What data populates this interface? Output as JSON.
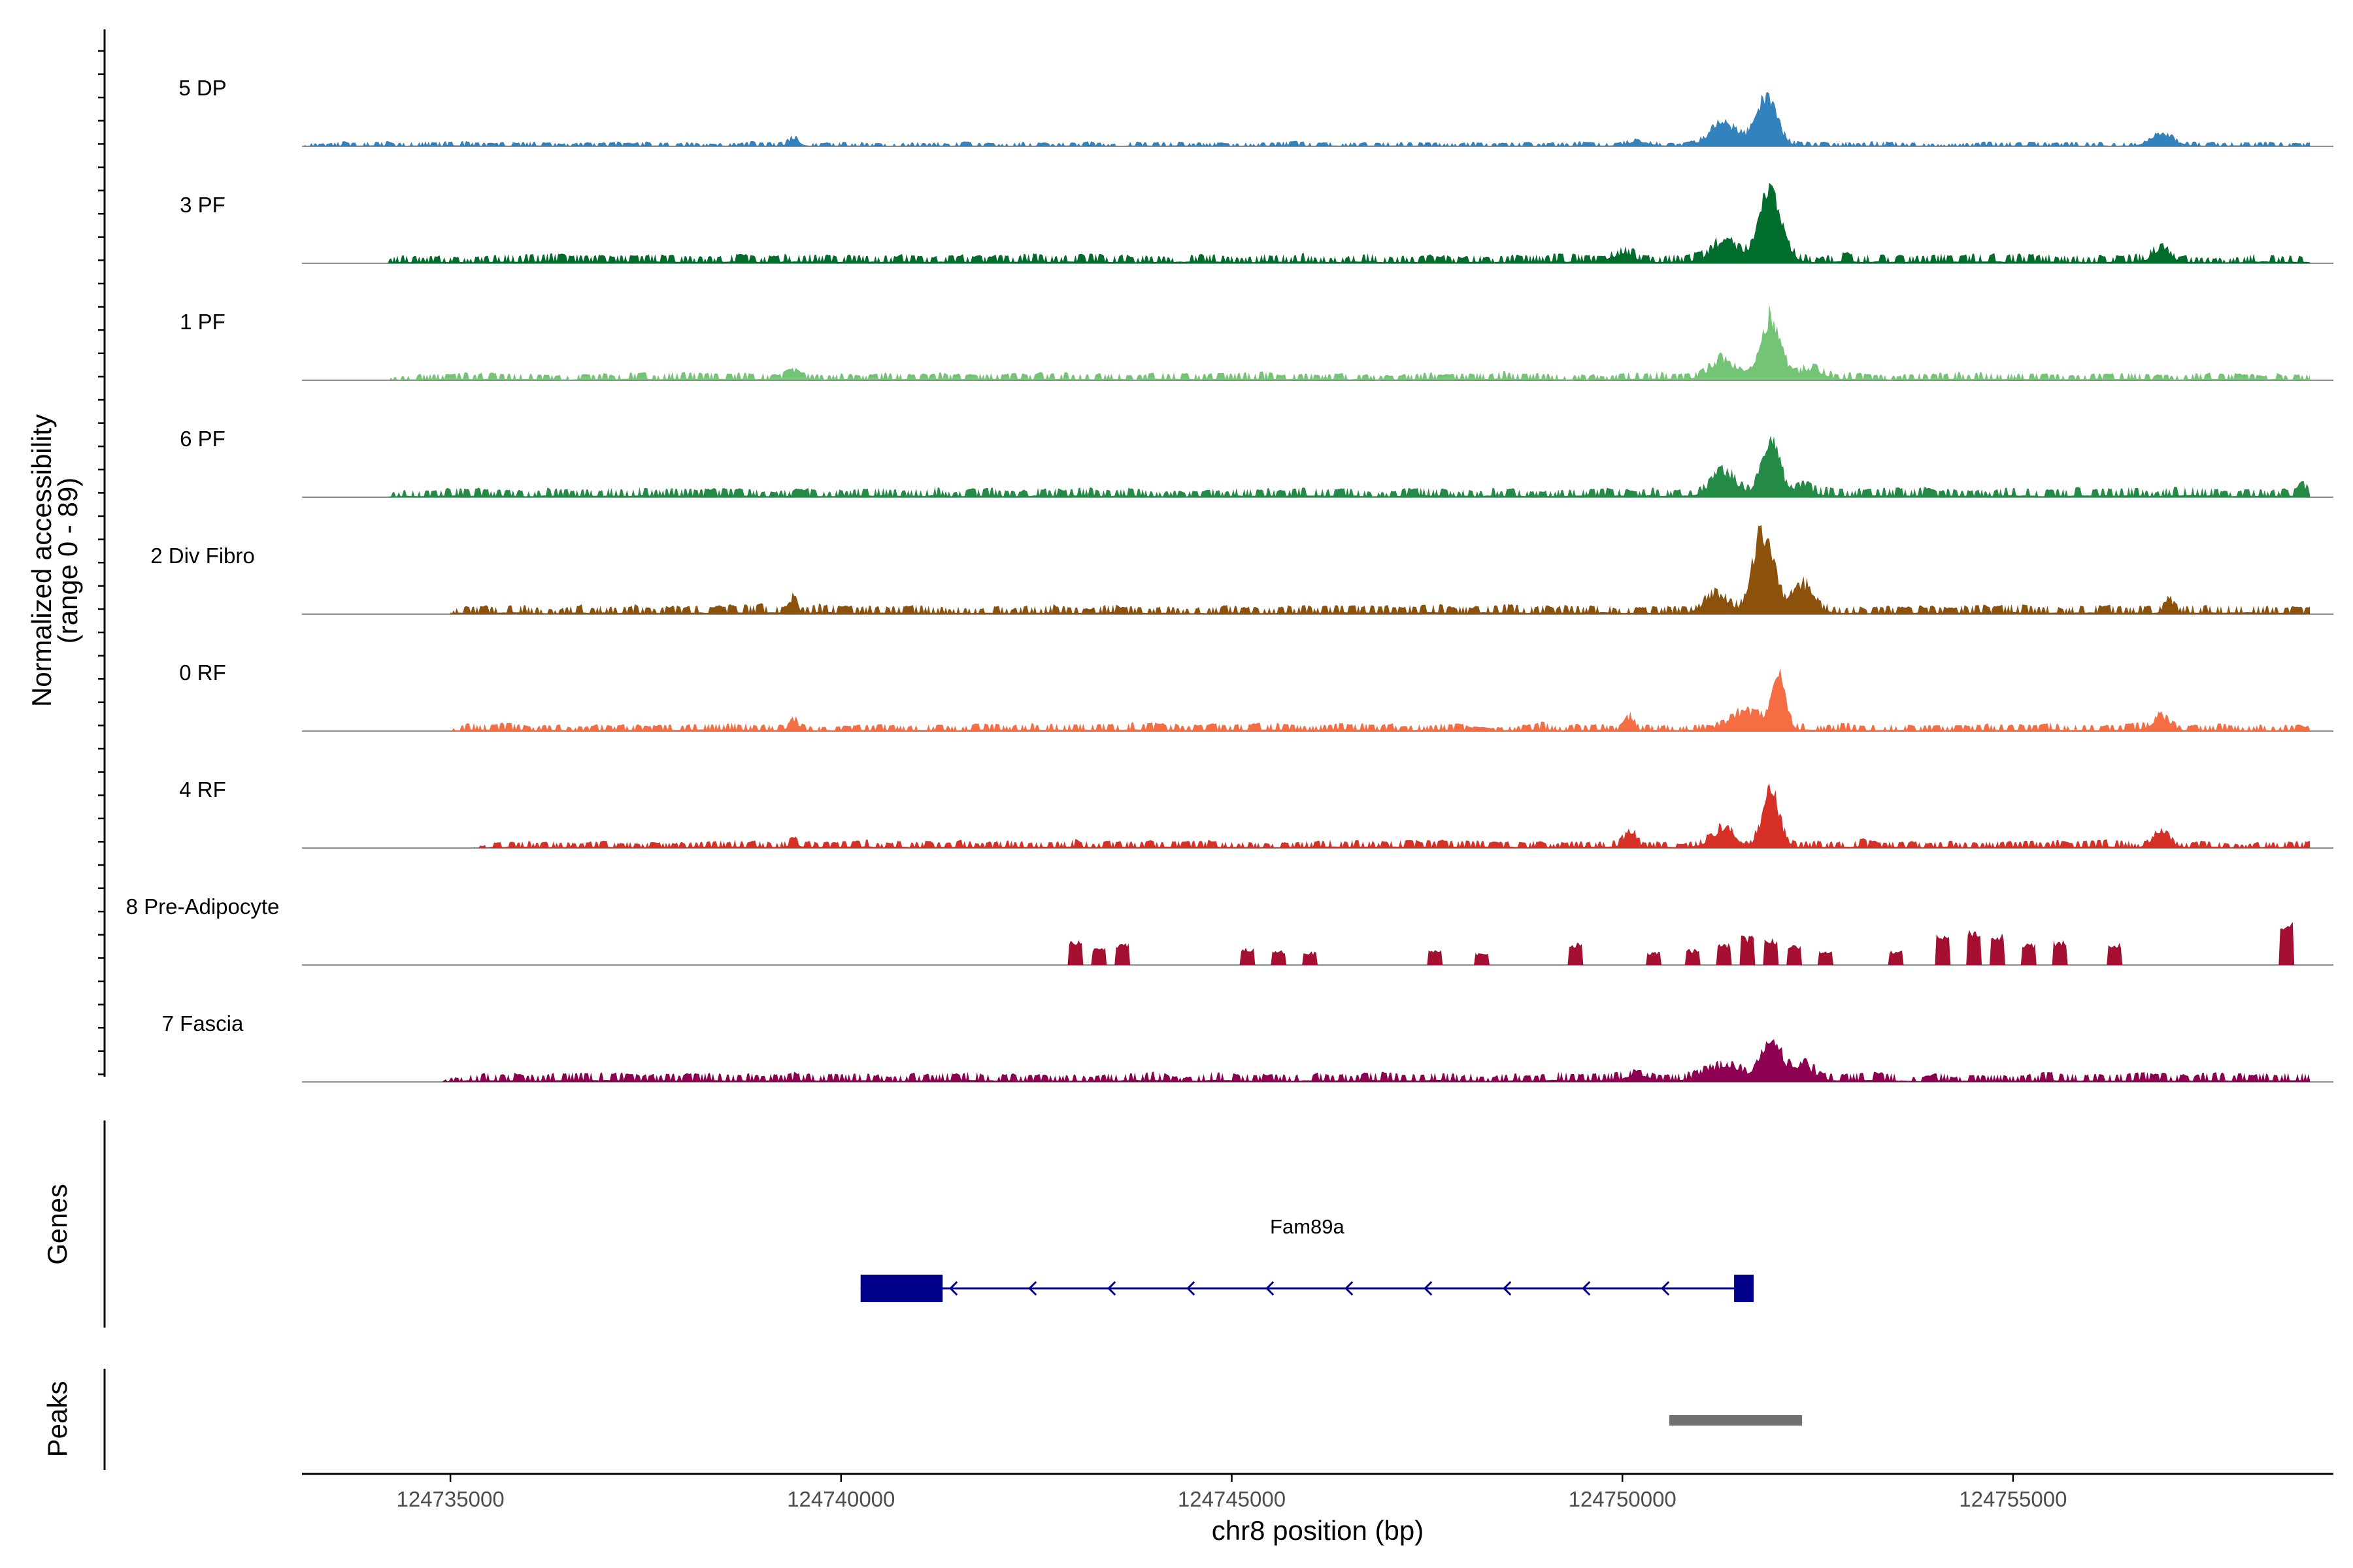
{
  "chart_data": {
    "type": "area",
    "title": "",
    "ylabel_line1": "Normalized accessibility",
    "ylabel_line2": "(range 0 - 89)",
    "xlabel": "chr8 position (bp)",
    "xlim": [
      124733100,
      124759100
    ],
    "ylim": [
      0,
      89
    ],
    "x_ticks": [
      "124735000",
      "124740000",
      "124745000",
      "124750000",
      "124755000"
    ],
    "x_tick_values": [
      124735000,
      124740000,
      124745000,
      124750000,
      124755000
    ],
    "tracks": [
      {
        "name": "5 DP",
        "color": "#3182BD",
        "data_start": 124733100,
        "peaks": [
          [
            124751300,
            18,
            250
          ],
          [
            124751850,
            40,
            180
          ],
          [
            124756900,
            9,
            200
          ],
          [
            124739400,
            6,
            80
          ],
          [
            124750200,
            3,
            200
          ],
          [
            124758900,
            8,
            40
          ]
        ],
        "noise": 1.5,
        "noise_start": 124734200
      },
      {
        "name": "3 PF",
        "color": "#006D2C",
        "data_start": 124734200,
        "peaks": [
          [
            124751300,
            16,
            230
          ],
          [
            124751900,
            55,
            200
          ],
          [
            124756900,
            11,
            150
          ],
          [
            124750000,
            6,
            200
          ],
          [
            124758900,
            10,
            40
          ]
        ],
        "noise": 3
      },
      {
        "name": "1 PF",
        "color": "#74C476",
        "data_start": 124734200,
        "peaks": [
          [
            124751300,
            14,
            230
          ],
          [
            124751900,
            52,
            170
          ],
          [
            124752400,
            8,
            200
          ],
          [
            124739400,
            5,
            100
          ],
          [
            124758900,
            10,
            40
          ]
        ],
        "noise": 2.5
      },
      {
        "name": "6 PF",
        "color": "#238B45",
        "data_start": 124734200,
        "peaks": [
          [
            124751300,
            18,
            220
          ],
          [
            124751900,
            44,
            160
          ],
          [
            124752300,
            8,
            150
          ],
          [
            124758700,
            8,
            60
          ],
          [
            124758900,
            10,
            40
          ]
        ],
        "noise": 3
      },
      {
        "name": "2 Div Fibro",
        "color": "#8C510A",
        "data_start": 124735000,
        "peaks": [
          [
            124751200,
            15,
            200
          ],
          [
            124751800,
            66,
            180
          ],
          [
            124752300,
            22,
            200
          ],
          [
            124739400,
            14,
            60
          ],
          [
            124757000,
            10,
            80
          ],
          [
            124758900,
            8,
            40
          ]
        ],
        "noise": 3
      },
      {
        "name": "0 RF",
        "color": "#F46D43",
        "data_start": 124735000,
        "peaks": [
          [
            124751600,
            14,
            300
          ],
          [
            124752000,
            38,
            120
          ],
          [
            124750100,
            10,
            70
          ],
          [
            124739400,
            7,
            80
          ],
          [
            124756900,
            10,
            150
          ],
          [
            124758900,
            9,
            40
          ]
        ],
        "noise": 2.5
      },
      {
        "name": "4 RF",
        "color": "#D73027",
        "data_start": 124735300,
        "peaks": [
          [
            124751300,
            14,
            200
          ],
          [
            124751900,
            44,
            150
          ],
          [
            124750100,
            12,
            100
          ],
          [
            124756900,
            12,
            150
          ],
          [
            124739400,
            4,
            60
          ]
        ],
        "noise": 2.5
      },
      {
        "name": "8 Pre-Adipocyte",
        "color": "#A50F31",
        "data_start": 124742900,
        "spiky": true,
        "spikes": [
          [
            124743000,
            20
          ],
          [
            124743300,
            14
          ],
          [
            124743600,
            18
          ],
          [
            124745200,
            14
          ],
          [
            124745600,
            12
          ],
          [
            124746000,
            11
          ],
          [
            124747600,
            12
          ],
          [
            124748200,
            10
          ],
          [
            124749400,
            18
          ],
          [
            124750400,
            11
          ],
          [
            124750900,
            13
          ],
          [
            124751300,
            18
          ],
          [
            124751600,
            24
          ],
          [
            124751900,
            22
          ],
          [
            124752200,
            16
          ],
          [
            124752600,
            12
          ],
          [
            124753500,
            12
          ],
          [
            124754100,
            26
          ],
          [
            124754500,
            28
          ],
          [
            124754800,
            26
          ],
          [
            124755200,
            18
          ],
          [
            124755600,
            20
          ],
          [
            124756300,
            18
          ],
          [
            124758500,
            36
          ]
        ]
      },
      {
        "name": "7 Fascia",
        "color": "#8E0152",
        "data_start": 124734900,
        "peaks": [
          [
            124751300,
            12,
            300
          ],
          [
            124751900,
            30,
            180
          ],
          [
            124752300,
            12,
            200
          ],
          [
            124750200,
            4,
            200
          ],
          [
            124758900,
            8,
            40
          ]
        ],
        "noise": 3
      }
    ],
    "genes_panel_label": "Genes",
    "peaks_panel_label": "Peaks",
    "gene": {
      "name": "Fam89a",
      "start": 124740250,
      "end": 124751680,
      "strand": "-",
      "exons": [
        [
          124740250,
          124741300
        ],
        [
          124751430,
          124751680
        ]
      ]
    },
    "peak_regions": [
      [
        124750600,
        124752300
      ]
    ]
  },
  "colors": {
    "gene": "#00008B",
    "peak": "#707070",
    "baseline": "#8c8c8c",
    "axis": "#000000"
  }
}
